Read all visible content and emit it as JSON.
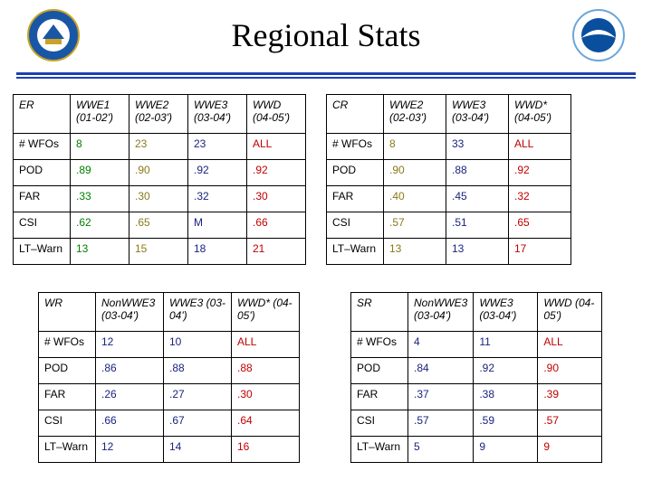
{
  "title": "Regional Stats",
  "colors": {
    "green": "#008000",
    "olive": "#8a7a1a",
    "navy": "#1a237e",
    "red": "#c00000",
    "black": "#000000",
    "rule": "#1f3fb5"
  },
  "tables": {
    "er": {
      "headers": [
        "ER",
        "WWE1 (01-02')",
        "WWE2 (02-03')",
        "WWE3 (03-04')",
        "WWD (04-05')"
      ],
      "rows": [
        {
          "label": "# WFOs",
          "cells": [
            {
              "v": "8",
              "c": "green"
            },
            {
              "v": "23",
              "c": "olive"
            },
            {
              "v": "23",
              "c": "navy"
            },
            {
              "v": "ALL",
              "c": "red"
            }
          ]
        },
        {
          "label": "POD",
          "cells": [
            {
              "v": ".89",
              "c": "green"
            },
            {
              "v": ".90",
              "c": "olive"
            },
            {
              "v": ".92",
              "c": "navy"
            },
            {
              "v": ".92",
              "c": "red"
            }
          ]
        },
        {
          "label": "FAR",
          "cells": [
            {
              "v": ".33",
              "c": "green"
            },
            {
              "v": ".30",
              "c": "olive"
            },
            {
              "v": ".32",
              "c": "navy"
            },
            {
              "v": ".30",
              "c": "red"
            }
          ]
        },
        {
          "label": "CSI",
          "cells": [
            {
              "v": ".62",
              "c": "green"
            },
            {
              "v": ".65",
              "c": "olive"
            },
            {
              "v": "M",
              "c": "navy"
            },
            {
              "v": ".66",
              "c": "red"
            }
          ]
        },
        {
          "label": "LT–Warn",
          "cells": [
            {
              "v": "13",
              "c": "green"
            },
            {
              "v": "15",
              "c": "olive"
            },
            {
              "v": "18",
              "c": "navy"
            },
            {
              "v": "21",
              "c": "red"
            }
          ]
        }
      ]
    },
    "cr": {
      "headers": [
        "CR",
        "WWE2 (02-03')",
        "WWE3 (03-04')",
        "WWD* (04-05')"
      ],
      "rows": [
        {
          "label": "# WFOs",
          "cells": [
            {
              "v": "8",
              "c": "olive"
            },
            {
              "v": "33",
              "c": "navy"
            },
            {
              "v": "ALL",
              "c": "red"
            }
          ]
        },
        {
          "label": "POD",
          "cells": [
            {
              "v": ".90",
              "c": "olive"
            },
            {
              "v": ".88",
              "c": "navy"
            },
            {
              "v": ".92",
              "c": "red"
            }
          ]
        },
        {
          "label": "FAR",
          "cells": [
            {
              "v": ".40",
              "c": "olive"
            },
            {
              "v": ".45",
              "c": "navy"
            },
            {
              "v": ".32",
              "c": "red"
            }
          ]
        },
        {
          "label": "CSI",
          "cells": [
            {
              "v": ".57",
              "c": "olive"
            },
            {
              "v": ".51",
              "c": "navy"
            },
            {
              "v": ".65",
              "c": "red"
            }
          ]
        },
        {
          "label": "LT–Warn",
          "cells": [
            {
              "v": "13",
              "c": "olive"
            },
            {
              "v": "13",
              "c": "navy"
            },
            {
              "v": "17",
              "c": "red"
            }
          ]
        }
      ]
    },
    "wr": {
      "headers": [
        "WR",
        "NonWWE3  (03-04')",
        "WWE3 (03-04')",
        "WWD* (04-05')"
      ],
      "rows": [
        {
          "label": "# WFOs",
          "cells": [
            {
              "v": "12",
              "c": "navy"
            },
            {
              "v": "10",
              "c": "navy"
            },
            {
              "v": "ALL",
              "c": "red"
            }
          ]
        },
        {
          "label": "POD",
          "cells": [
            {
              "v": ".86",
              "c": "navy"
            },
            {
              "v": ".88",
              "c": "navy"
            },
            {
              "v": ".88",
              "c": "red"
            }
          ]
        },
        {
          "label": "FAR",
          "cells": [
            {
              "v": ".26",
              "c": "navy"
            },
            {
              "v": ".27",
              "c": "navy"
            },
            {
              "v": ".30",
              "c": "red"
            }
          ]
        },
        {
          "label": "CSI",
          "cells": [
            {
              "v": ".66",
              "c": "navy"
            },
            {
              "v": ".67",
              "c": "navy"
            },
            {
              "v": ".64",
              "c": "red"
            }
          ]
        },
        {
          "label": "LT–Warn",
          "cells": [
            {
              "v": "12",
              "c": "navy"
            },
            {
              "v": "14",
              "c": "navy"
            },
            {
              "v": "16",
              "c": "red"
            }
          ]
        }
      ]
    },
    "sr": {
      "headers": [
        "SR",
        "NonWWE3  (03-04')",
        "WWE3 (03-04')",
        "WWD (04-05')"
      ],
      "rows": [
        {
          "label": "# WFOs",
          "cells": [
            {
              "v": "4",
              "c": "navy"
            },
            {
              "v": "11",
              "c": "navy"
            },
            {
              "v": "ALL",
              "c": "red"
            }
          ]
        },
        {
          "label": "POD",
          "cells": [
            {
              "v": ".84",
              "c": "navy"
            },
            {
              "v": ".92",
              "c": "navy"
            },
            {
              "v": ".90",
              "c": "red"
            }
          ]
        },
        {
          "label": "FAR",
          "cells": [
            {
              "v": ".37",
              "c": "navy"
            },
            {
              "v": ".38",
              "c": "navy"
            },
            {
              "v": ".39",
              "c": "red"
            }
          ]
        },
        {
          "label": "CSI",
          "cells": [
            {
              "v": ".57",
              "c": "navy"
            },
            {
              "v": ".59",
              "c": "navy"
            },
            {
              "v": ".57",
              "c": "red"
            }
          ]
        },
        {
          "label": "LT–Warn",
          "cells": [
            {
              "v": "5",
              "c": "navy"
            },
            {
              "v": "9",
              "c": "navy"
            },
            {
              "v": "9",
              "c": "red"
            }
          ]
        }
      ]
    }
  }
}
